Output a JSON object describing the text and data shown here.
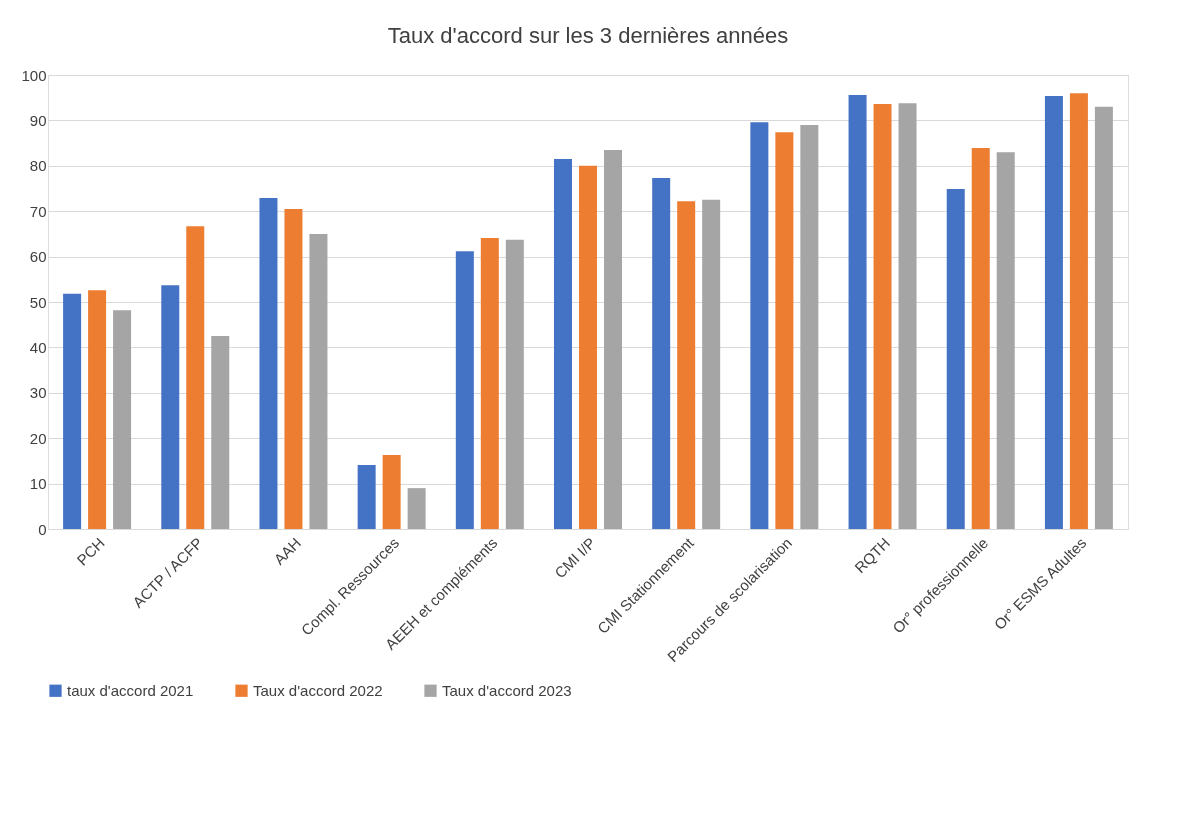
{
  "chart_data": {
    "type": "bar",
    "title": "Taux d'accord sur les 3 dernières années",
    "categories": [
      "PCH",
      "ACTP / ACFP",
      "AAH",
      "Compl. Ressources",
      "AEEH et compléments",
      "CMI I/P",
      "CMI Stationnement",
      "Parcours de scolarisation",
      "RQTH",
      "Or° professionnelle",
      "Or° ESMS Adultes"
    ],
    "series": [
      {
        "name": "taux d'accord 2021",
        "color": "#4472c4",
        "values": [
          51.8,
          53.7,
          72.9,
          14.1,
          61.2,
          81.5,
          77.3,
          89.6,
          95.6,
          74.9,
          95.4
        ]
      },
      {
        "name": "Taux d'accord 2022",
        "color": "#ed7d31",
        "values": [
          52.6,
          66.7,
          70.5,
          16.3,
          64.1,
          80.0,
          72.2,
          87.4,
          93.6,
          83.9,
          96.0
        ]
      },
      {
        "name": "Taux d'accord 2023",
        "color": "#a5a5a5",
        "values": [
          48.2,
          42.5,
          65.0,
          9.0,
          63.7,
          83.5,
          72.5,
          89.0,
          93.8,
          83.0,
          93.0
        ]
      }
    ],
    "ylim": [
      0,
      100
    ],
    "yticks": [
      0,
      10,
      20,
      30,
      40,
      50,
      60,
      70,
      80,
      90,
      100
    ],
    "grid": "y",
    "legend": "bottom"
  }
}
